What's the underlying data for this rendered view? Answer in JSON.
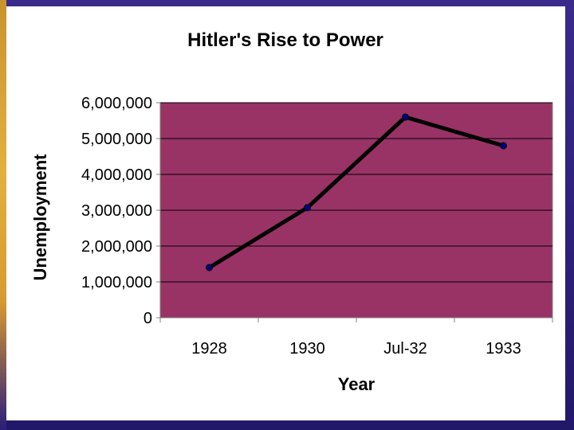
{
  "colors": {
    "plot_background": "#993366",
    "line": "#000000",
    "gridline": "#000000",
    "slide_background": "#ffffff",
    "frame": "#2b1d7a"
  },
  "chart_data": {
    "type": "line",
    "title": "Hitler's Rise to Power",
    "xlabel": "Year",
    "ylabel": "Unemployment",
    "categories": [
      "1928",
      "1930",
      "Jul-32",
      "1933"
    ],
    "series": [
      {
        "values": [
          1400000,
          3070000,
          5600000,
          4800000
        ]
      }
    ],
    "ylim": [
      0,
      6000000
    ],
    "yticks": [
      0,
      1000000,
      2000000,
      3000000,
      4000000,
      5000000,
      6000000
    ],
    "ytick_labels": [
      "0",
      "1,000,000",
      "2,000,000",
      "3,000,000",
      "4,000,000",
      "5,000,000",
      "6,000,000"
    ],
    "grid": true,
    "legend": "none"
  }
}
